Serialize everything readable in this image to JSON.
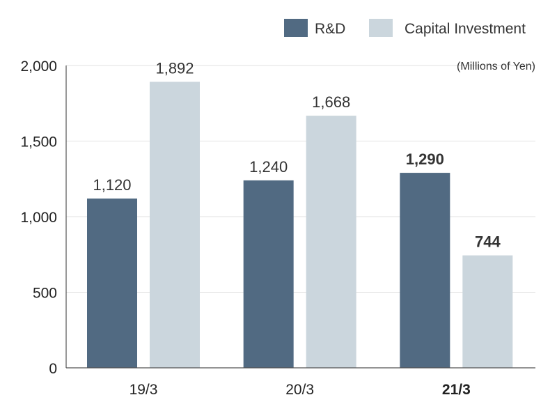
{
  "colors": {
    "rnd": "#516a82",
    "capex": "#cbd6dd",
    "grid": "#e2e2e2",
    "axis": "#555555"
  },
  "legend": {
    "placement": "top-right",
    "items": [
      {
        "label": "R&D",
        "color": "#516a82"
      },
      {
        "label": "Capital Investment",
        "color": "#cbd6dd"
      }
    ]
  },
  "chart_data": {
    "type": "bar",
    "categories": [
      "19/3",
      "20/3",
      "21/3"
    ],
    "highlight_category": "21/3",
    "series": [
      {
        "name": "R&D",
        "values": [
          1120,
          1240,
          1290
        ],
        "labels": [
          "1,120",
          "1,240",
          "1,290"
        ]
      },
      {
        "name": "Capital Investment",
        "values": [
          1892,
          1668,
          744
        ],
        "labels": [
          "1,892",
          "1,668",
          "744"
        ]
      }
    ],
    "unit_note": "(Millions of Yen)",
    "ylim": [
      0,
      2000
    ],
    "yticks": [
      0,
      500,
      1000,
      1500,
      2000
    ],
    "ytick_labels": [
      "0",
      "500",
      "1,000",
      "1,500",
      "2,000"
    ],
    "grid": true
  }
}
